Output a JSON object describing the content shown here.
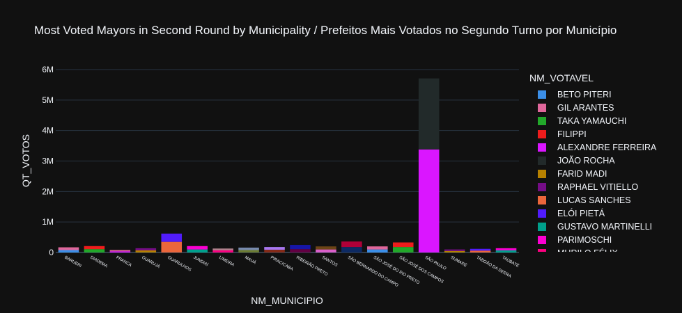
{
  "chart_data": {
    "type": "bar",
    "barmode": "stack",
    "title": "Most Voted Mayors in Second Round by Municipality / Prefeitos Mais Votados no Segundo Turno por Município",
    "xlabel": "NM_MUNICIPIO",
    "ylabel": "QT_VOTOS",
    "legend_title": "NM_VOTAVEL",
    "ylim": [
      0,
      6000000
    ],
    "yticks": [
      0,
      1000000,
      2000000,
      3000000,
      4000000,
      5000000,
      6000000
    ],
    "ytick_labels": [
      "0",
      "1M",
      "2M",
      "3M",
      "4M",
      "5M",
      "6M"
    ],
    "grid": true,
    "legend_position": "right",
    "categories": [
      "BARUERI",
      "DIADEMA",
      "FRANCA",
      "GUARUJÁ",
      "GUARULHOS",
      "JUNDIAÍ",
      "LIMEIRA",
      "MAUÁ",
      "PIRACICABA",
      "RIBEIRÃO PRETO",
      "SANTOS",
      "SÃO BERNARDO DO CAMPO",
      "SÃO JOSÉ DO RIO PRETO",
      "SÃO JOSÉ DOS CAMPOS",
      "SÃO PAULO",
      "SUMARÉ",
      "TABOÃO DA SERRA",
      "TAUBATÉ"
    ],
    "legend_entries": [
      {
        "name": "BETO PITERI",
        "color": "#3b8fe8"
      },
      {
        "name": "GIL ARANTES",
        "color": "#e0679b"
      },
      {
        "name": "TAKA YAMAUCHI",
        "color": "#22a82a"
      },
      {
        "name": "FILIPPI",
        "color": "#ee1c1c"
      },
      {
        "name": "ALEXANDRE FERREIRA",
        "color": "#da16ff"
      },
      {
        "name": "JOÃO ROCHA",
        "color": "#222a2a"
      },
      {
        "name": "FARID MADI",
        "color": "#b68100"
      },
      {
        "name": "RAPHAEL VITIELLO",
        "color": "#750d86"
      },
      {
        "name": "LUCAS SANCHES",
        "color": "#eb663b"
      },
      {
        "name": "ELÓI PIETÁ",
        "color": "#511cfb"
      },
      {
        "name": "GUSTAVO MARTINELLI",
        "color": "#00a08b"
      },
      {
        "name": "PARIMOSCHI",
        "color": "#fb00d1"
      },
      {
        "name": "MURILO FÉLIX",
        "color": "#fc0080"
      }
    ],
    "stacks": [
      [
        {
          "value": 80000,
          "color": "#3b8fe8"
        },
        {
          "value": 90000,
          "color": "#e0679b"
        }
      ],
      [
        {
          "value": 110000,
          "color": "#22a82a"
        },
        {
          "value": 100000,
          "color": "#ee1c1c"
        }
      ],
      [
        {
          "value": 40000,
          "color": "#da16ff"
        },
        {
          "value": 40000,
          "color": "#e0679b"
        }
      ],
      [
        {
          "value": 70000,
          "color": "#b68100"
        },
        {
          "value": 70000,
          "color": "#750d86"
        }
      ],
      [
        {
          "value": 350000,
          "color": "#eb663b"
        },
        {
          "value": 270000,
          "color": "#511cfb"
        }
      ],
      [
        {
          "value": 100000,
          "color": "#00a08b"
        },
        {
          "value": 110000,
          "color": "#fb00d1"
        }
      ],
      [
        {
          "value": 70000,
          "color": "#fc0080"
        },
        {
          "value": 60000,
          "color": "#b2828d"
        }
      ],
      [
        {
          "value": 80000,
          "color": "#6c7c32"
        },
        {
          "value": 80000,
          "color": "#778aae"
        }
      ],
      [
        {
          "value": 90000,
          "color": "#862a16"
        },
        {
          "value": 90000,
          "color": "#a777f1"
        }
      ],
      [
        {
          "value": 110000,
          "color": "#620042"
        },
        {
          "value": 140000,
          "color": "#1616a7"
        }
      ],
      [
        {
          "value": 100000,
          "color": "#da60ca"
        },
        {
          "value": 100000,
          "color": "#6c4516"
        }
      ],
      [
        {
          "value": 180000,
          "color": "#0d2a63"
        },
        {
          "value": 180000,
          "color": "#af0038"
        }
      ],
      [
        {
          "value": 100000,
          "color": "#3b8fe8"
        },
        {
          "value": 100000,
          "color": "#e0679b"
        }
      ],
      [
        {
          "value": 180000,
          "color": "#22a82a"
        },
        {
          "value": 150000,
          "color": "#ee1c1c"
        }
      ],
      [
        {
          "value": 3380000,
          "color": "#da16ff"
        },
        {
          "value": 2330000,
          "color": "#222a2a"
        }
      ],
      [
        {
          "value": 50000,
          "color": "#b68100"
        },
        {
          "value": 50000,
          "color": "#750d86"
        }
      ],
      [
        {
          "value": 60000,
          "color": "#eb663b"
        },
        {
          "value": 60000,
          "color": "#511cfb"
        }
      ],
      [
        {
          "value": 70000,
          "color": "#00a08b"
        },
        {
          "value": 70000,
          "color": "#fb00d1"
        }
      ]
    ]
  }
}
